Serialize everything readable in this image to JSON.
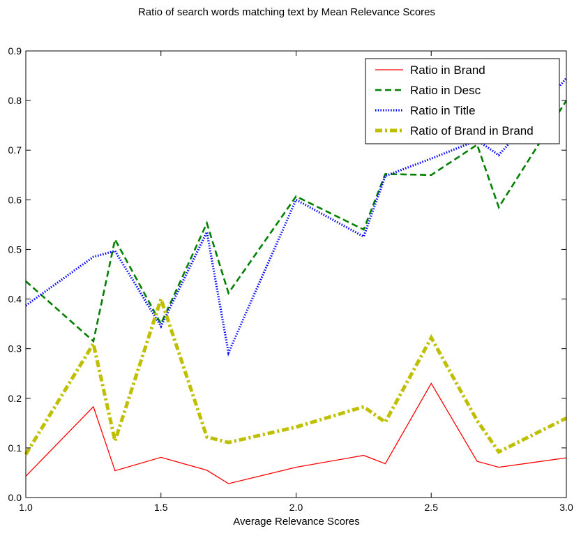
{
  "chart_data": {
    "type": "line",
    "title": "Ratio of search words matching text by Mean Relevance Scores",
    "xlabel": "Average Relevance Scores",
    "ylabel": "",
    "xlim": [
      1.0,
      3.0
    ],
    "ylim": [
      0.0,
      0.9
    ],
    "x_ticks": [
      "1.0",
      "1.5",
      "2.0",
      "2.5",
      "3.0"
    ],
    "y_ticks": [
      "0.0",
      "0.1",
      "0.2",
      "0.3",
      "0.4",
      "0.5",
      "0.6",
      "0.7",
      "0.8",
      "0.9"
    ],
    "grid": false,
    "legend_position": "top-right",
    "x": [
      1.0,
      1.25,
      1.33,
      1.5,
      1.67,
      1.75,
      2.0,
      2.25,
      2.33,
      2.5,
      2.67,
      2.75,
      3.0
    ],
    "series": [
      {
        "name": "Ratio in Brand",
        "color": "#ff0000",
        "style": "solid",
        "values": [
          0.043,
          0.183,
          0.054,
          0.081,
          0.055,
          0.028,
          0.061,
          0.085,
          0.068,
          0.23,
          0.073,
          0.061,
          0.08
        ]
      },
      {
        "name": "Ratio in Desc",
        "color": "#008000",
        "style": "dashed",
        "values": [
          0.436,
          0.315,
          0.52,
          0.35,
          0.553,
          0.412,
          0.607,
          0.54,
          0.652,
          0.65,
          0.711,
          0.585,
          0.8
        ]
      },
      {
        "name": "Ratio in Title",
        "color": "#0000ff",
        "style": "dotted",
        "values": [
          0.387,
          0.485,
          0.497,
          0.345,
          0.535,
          0.292,
          0.6,
          0.526,
          0.648,
          0.683,
          0.72,
          0.69,
          0.845
        ]
      },
      {
        "name": "Ratio of Brand in Brand",
        "color": "#bfbf00",
        "style": "dashdot",
        "values": [
          0.087,
          0.31,
          0.114,
          0.4,
          0.122,
          0.111,
          0.142,
          0.183,
          0.152,
          0.322,
          0.155,
          0.092,
          0.16
        ]
      }
    ]
  }
}
